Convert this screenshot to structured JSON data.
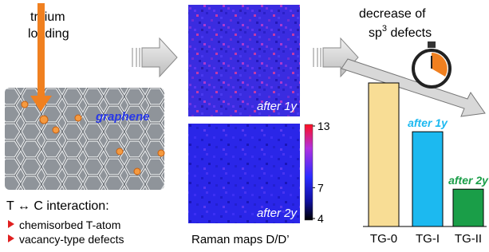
{
  "left": {
    "loading_label": [
      "tritium",
      "loading"
    ],
    "graphene_label": "graphene",
    "interaction_title": "T ↔ C interaction:",
    "bullets": [
      "chemisorbed T-atom",
      "vacancy-type defects"
    ]
  },
  "middle": {
    "map_labels": [
      "after 1y",
      "after 2y"
    ],
    "colorbar_ticks": [
      13,
      7,
      4
    ],
    "caption": "Raman maps D/D’"
  },
  "right": {
    "annotation": {
      "line1": "decrease of",
      "line2_base": "sp",
      "line2_sup": "3",
      "line2_rest": " defects"
    }
  },
  "chart_data": {
    "type": "bar",
    "categories": [
      "TG-0",
      "TG-I",
      "TG-II"
    ],
    "values": [
      100,
      66,
      26
    ],
    "colors": [
      "#f8dd95",
      "#1cb9f0",
      "#1a9e48"
    ],
    "bar_labels": [
      null,
      "after 1y",
      "after 2y"
    ]
  }
}
